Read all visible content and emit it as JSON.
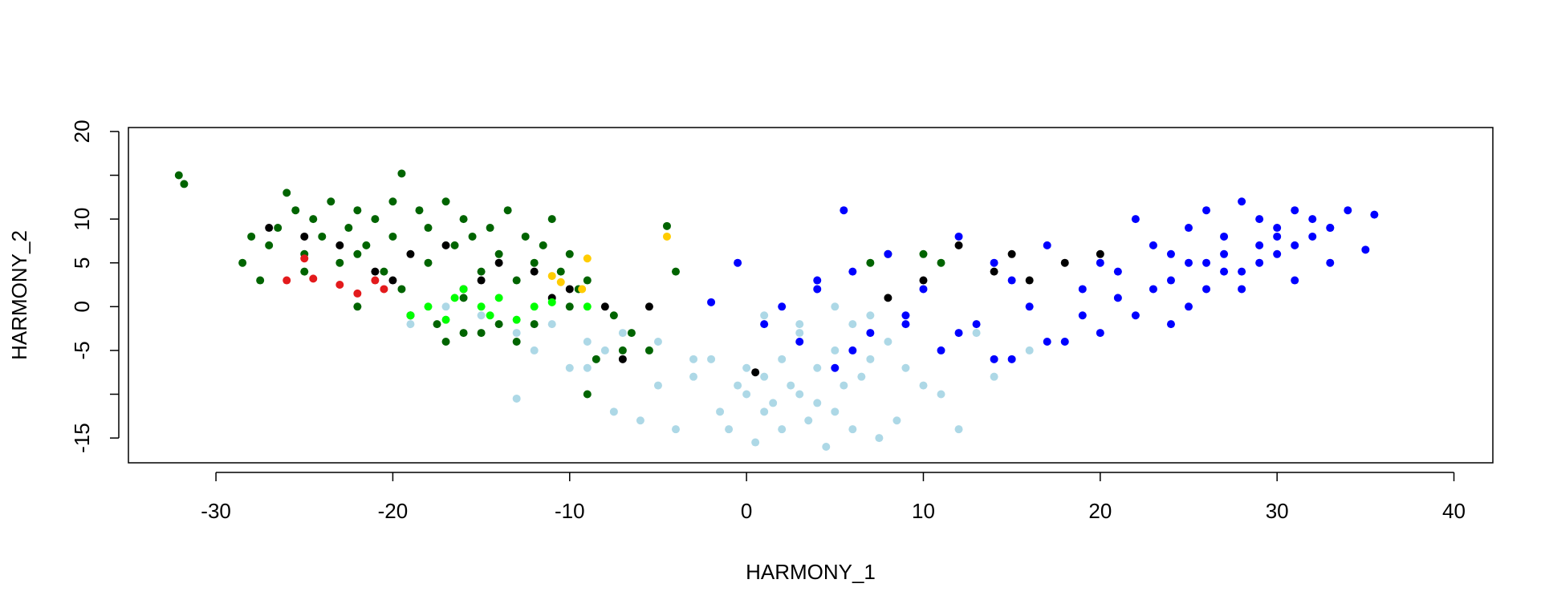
{
  "chart_data": {
    "type": "scatter",
    "x_label": "HARMONY_1",
    "y_label": "HARMONY_2",
    "xlim": [
      -34.95,
      42.2
    ],
    "ylim": [
      -17.83,
      20.45
    ],
    "xticks": [
      -30,
      -20,
      -10,
      0,
      10,
      20,
      30,
      40
    ],
    "yticks": [
      {
        "value": -15,
        "label": "-15"
      },
      {
        "value": -10,
        "label": null
      },
      -5,
      0,
      5,
      10,
      {
        "value": 15,
        "label": null
      },
      20
    ],
    "series": [
      {
        "color": "#006400",
        "x": [
          -32.1,
          -31.8,
          -28.5,
          -28,
          -27.5,
          -27,
          -26.5,
          -26,
          -25.5,
          -25,
          -25,
          -24.5,
          -24,
          -23.5,
          -23,
          -22.5,
          -22,
          -22,
          -21.5,
          -21,
          -20.5,
          -20,
          -20,
          -19.5,
          -19.5,
          -19,
          -18.5,
          -18,
          -18,
          -17.5,
          -17,
          -16.5,
          -16,
          -16,
          -15.5,
          -15,
          -15,
          -14.5,
          -14,
          -13.5,
          -13,
          -13,
          -12.5,
          -12,
          -11.5,
          -11,
          -10.5,
          -10,
          -9.5,
          -9,
          -8.5,
          -7.5,
          -6.5,
          -5.5,
          -4.5,
          -4,
          -9,
          -12,
          -17,
          -14,
          -22,
          -19,
          -16,
          -10,
          8,
          10,
          11,
          7,
          -7
        ],
        "values": [
          15,
          14,
          5,
          8,
          3,
          7,
          9,
          13,
          11,
          6,
          4,
          10,
          8,
          12,
          5,
          9,
          6,
          11,
          7,
          10,
          4,
          12,
          8,
          15.2,
          2,
          -1,
          11,
          9,
          5,
          -2,
          12,
          7,
          10,
          1,
          8,
          -3,
          4,
          9,
          6,
          11,
          -4,
          3,
          8,
          5,
          7,
          10,
          4,
          6,
          2,
          3,
          -6,
          -1,
          -3,
          -5,
          9.2,
          4,
          -10,
          -2,
          -4,
          -2,
          0,
          -1,
          -3,
          0,
          6,
          6,
          5,
          5,
          -5
        ]
      },
      {
        "color": "#add8e6",
        "x": [
          -19,
          -17,
          -15,
          -13,
          -12,
          -11,
          -10,
          -9,
          -8,
          -7.5,
          -7,
          -6,
          -5,
          -4,
          -3,
          -2,
          -1.5,
          -1,
          -0.5,
          0,
          0,
          0.5,
          1,
          1,
          1.5,
          2,
          2,
          2.5,
          3,
          3,
          3.5,
          4,
          4,
          4.5,
          5,
          5,
          5.5,
          6,
          6,
          6.5,
          7,
          7.5,
          8,
          8.5,
          9,
          10,
          11,
          12,
          13,
          14,
          16,
          18,
          -13,
          -9,
          -5,
          -3,
          1,
          3,
          5,
          7
        ],
        "values": [
          -2,
          0,
          -1,
          -3,
          -5,
          -2,
          -7,
          -7,
          -5,
          -12,
          -3,
          -13,
          -4,
          -14,
          -8,
          -6,
          -12,
          -14,
          -9,
          -7,
          -10,
          -15.5,
          -8,
          -12,
          -11,
          -6,
          -14,
          -9,
          -3,
          -10,
          -13,
          -7,
          -11,
          -16,
          -5,
          -12,
          -9,
          -14,
          -2,
          -8,
          -6,
          -15,
          -4,
          -13,
          -7,
          -9,
          -10,
          -14,
          -3,
          -8,
          -5,
          -4,
          -10.5,
          -4,
          -9,
          -6,
          -1,
          -2,
          0,
          -1
        ]
      },
      {
        "color": "#0000ff",
        "x": [
          1,
          2,
          3,
          4,
          5,
          5.5,
          6,
          7,
          8,
          9,
          10,
          11,
          12,
          13,
          14,
          15,
          15,
          16,
          17,
          18,
          19,
          20,
          20,
          21,
          22,
          22,
          23,
          24,
          24,
          25,
          25,
          26,
          26,
          27,
          27,
          28,
          28,
          29,
          29,
          30,
          30,
          31,
          31,
          32,
          32,
          33,
          33,
          34,
          35.5,
          35,
          -2,
          -0.5,
          4,
          6,
          9,
          12,
          14,
          17,
          19,
          21,
          23,
          25,
          27,
          29,
          31,
          33,
          26,
          28,
          30,
          24
        ],
        "values": [
          -2,
          0,
          -4,
          3,
          -7,
          11,
          4,
          -3,
          6,
          -1,
          2,
          -5,
          8,
          -2,
          5,
          -6,
          3,
          0,
          7,
          -4,
          2,
          -3,
          5,
          1,
          10,
          -1,
          7,
          3,
          -2,
          9,
          5,
          11,
          2,
          6,
          8,
          12,
          4,
          7,
          10,
          6,
          9,
          3,
          11,
          8,
          10,
          5,
          9,
          11,
          10.5,
          6.5,
          0.5,
          5,
          2,
          -5,
          -2,
          -3,
          -6,
          -4,
          -1,
          4,
          2,
          0,
          4,
          5,
          7,
          9,
          5,
          2,
          8,
          6
        ]
      },
      {
        "color": "#000000",
        "x": [
          -27,
          -25,
          -23,
          -21,
          -20,
          -19,
          -17,
          -16,
          -15,
          -14,
          -12,
          -11,
          -10,
          -8,
          -7,
          -5.5,
          0.5,
          8,
          10,
          12,
          14,
          15,
          16,
          18,
          20
        ],
        "values": [
          9,
          8,
          7,
          4,
          3,
          6,
          7,
          2,
          3,
          5,
          4,
          1,
          2,
          0,
          -6,
          0,
          -7.5,
          1,
          3,
          7,
          4,
          6,
          3,
          5,
          6
        ]
      },
      {
        "color": "#00ff00",
        "x": [
          -19,
          -18,
          -17,
          -16.5,
          -16,
          -15,
          -14.5,
          -14,
          -13,
          -12,
          -11,
          -9
        ],
        "values": [
          -1,
          0,
          -1.5,
          1,
          2,
          0,
          -1,
          1,
          -1.5,
          0,
          0.5,
          0
        ]
      },
      {
        "color": "#e31a1c",
        "x": [
          -26,
          -24.5,
          -23,
          -22,
          -21,
          -20.5,
          -25
        ],
        "values": [
          3,
          3.2,
          2.5,
          1.5,
          3,
          2,
          5.5
        ]
      },
      {
        "color": "#ffcc00",
        "x": [
          -11,
          -10.5,
          -9.3,
          -9,
          -4.5
        ],
        "values": [
          3.5,
          2.8,
          2,
          5.5,
          8
        ]
      }
    ]
  }
}
